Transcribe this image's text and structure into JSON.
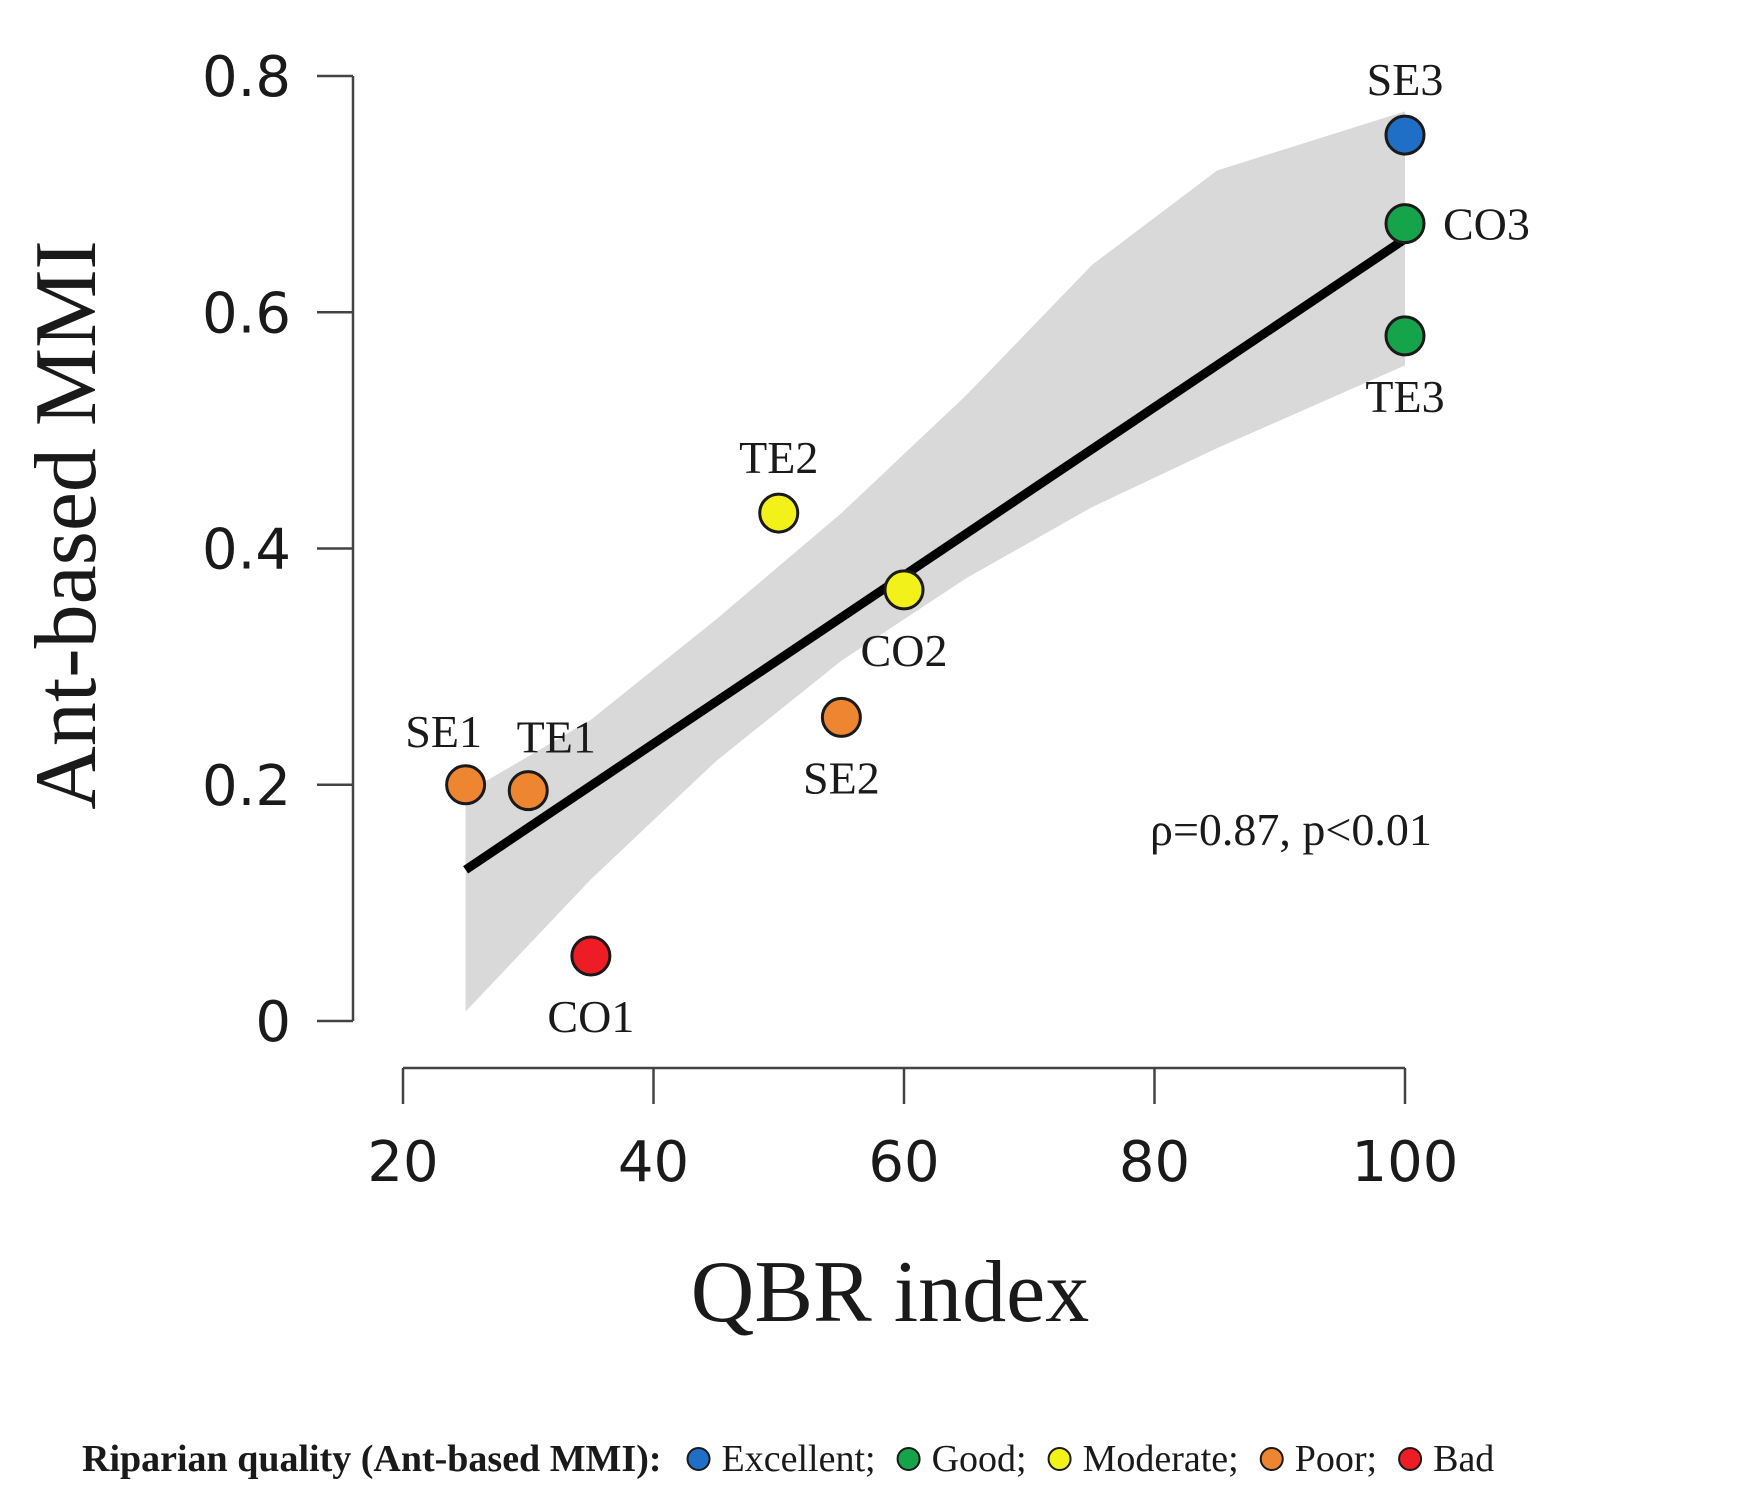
{
  "chart_data": {
    "type": "scatter",
    "xlabel": "QBR index",
    "ylabel": "Ant-based MMI",
    "xlim": [
      20,
      100
    ],
    "ylim": [
      0,
      0.8
    ],
    "x_ticks": [
      20,
      40,
      60,
      80,
      100
    ],
    "x_tick_labels": [
      "20",
      "40",
      "60",
      "80",
      "100"
    ],
    "y_ticks": [
      0,
      0.2,
      0.4,
      0.6,
      0.8
    ],
    "y_tick_labels": [
      "0",
      "0.2",
      "0.4",
      "0.6",
      "0.8"
    ],
    "points": [
      {
        "label": "SE1",
        "x": 25,
        "y": 0.2,
        "quality": "Poor",
        "label_pos": "above-left"
      },
      {
        "label": "TE1",
        "x": 30,
        "y": 0.195,
        "quality": "Poor",
        "label_pos": "above-right"
      },
      {
        "label": "CO1",
        "x": 35,
        "y": 0.055,
        "quality": "Bad",
        "label_pos": "below"
      },
      {
        "label": "TE2",
        "x": 50,
        "y": 0.43,
        "quality": "Moderate",
        "label_pos": "above"
      },
      {
        "label": "SE2",
        "x": 55,
        "y": 0.257,
        "quality": "Poor",
        "label_pos": "below"
      },
      {
        "label": "CO2",
        "x": 60,
        "y": 0.365,
        "quality": "Moderate",
        "label_pos": "below"
      },
      {
        "label": "SE3",
        "x": 100,
        "y": 0.75,
        "quality": "Excellent",
        "label_pos": "above"
      },
      {
        "label": "CO3",
        "x": 100,
        "y": 0.675,
        "quality": "Good",
        "label_pos": "right"
      },
      {
        "label": "TE3",
        "x": 100,
        "y": 0.58,
        "quality": "Good",
        "label_pos": "below"
      }
    ],
    "regression": {
      "x_start": 25,
      "y_start": 0.128,
      "x_end": 100,
      "y_end": 0.662,
      "ci_band": [
        {
          "x": 25,
          "lower": 0.008,
          "upper": 0.193
        },
        {
          "x": 35,
          "lower": 0.12,
          "upper": 0.255
        },
        {
          "x": 45,
          "lower": 0.22,
          "upper": 0.34
        },
        {
          "x": 55,
          "lower": 0.305,
          "upper": 0.43
        },
        {
          "x": 65,
          "lower": 0.375,
          "upper": 0.53
        },
        {
          "x": 75,
          "lower": 0.435,
          "upper": 0.64
        },
        {
          "x": 85,
          "lower": 0.485,
          "upper": 0.72
        },
        {
          "x": 100,
          "lower": 0.555,
          "upper": 0.77
        }
      ]
    },
    "annotation": "ρ=0.87, p<0.01",
    "legend": {
      "title": "Riparian quality (Ant-based MMI):",
      "entries": [
        {
          "name": "Excellent;",
          "color": "#1f6fc7"
        },
        {
          "name": "Good;",
          "color": "#16a44a"
        },
        {
          "name": "Moderate;",
          "color": "#f2f21a"
        },
        {
          "name": "Poor;",
          "color": "#ee8530"
        },
        {
          "name": "Bad",
          "color": "#ee1c24"
        }
      ]
    },
    "colors": {
      "Excellent": "#1f6fc7",
      "Good": "#16a44a",
      "Moderate": "#f2f21a",
      "Poor": "#ee8530",
      "Bad": "#ee1c24",
      "ci_band": "#d9d9d9",
      "regression_line": "#000000",
      "axis": "#444444"
    }
  }
}
